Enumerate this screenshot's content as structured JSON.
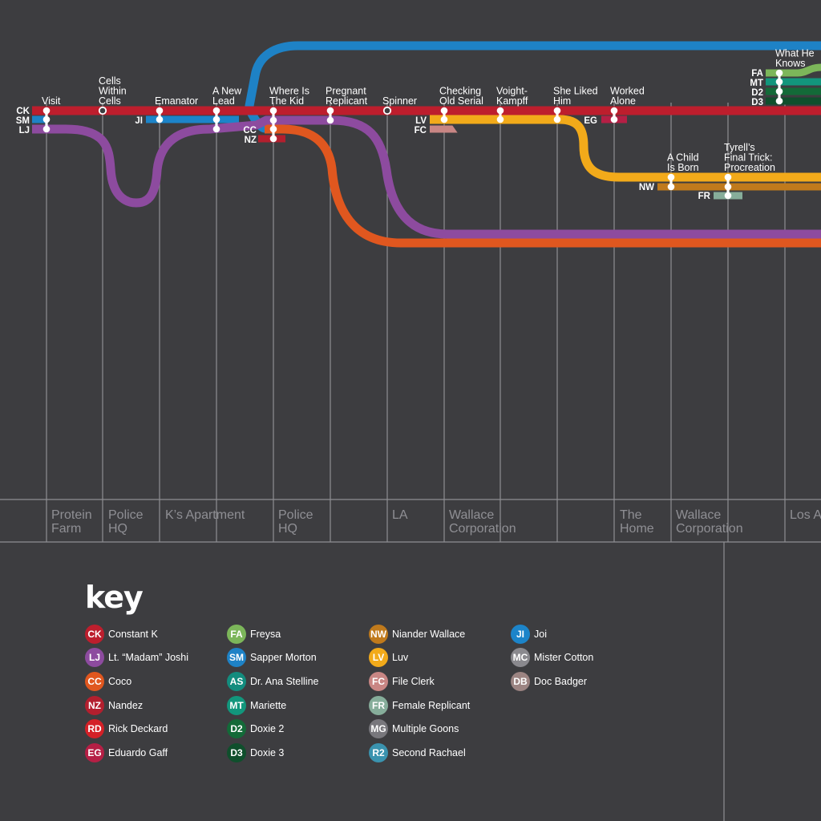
{
  "characters": [
    {
      "code": "CK",
      "name": "Constant K",
      "color": "#bd1e2d"
    },
    {
      "code": "LJ",
      "name": "Lt. “Madam” Joshi",
      "color": "#8d4b9f"
    },
    {
      "code": "CC",
      "name": "Coco",
      "color": "#e0571f"
    },
    {
      "code": "NZ",
      "name": "Nandez",
      "color": "#b31f2e"
    },
    {
      "code": "RD",
      "name": "Rick Deckard",
      "color": "#d42027"
    },
    {
      "code": "EG",
      "name": "Eduardo Gaff",
      "color": "#b51f45"
    },
    {
      "code": "FA",
      "name": "Freysa",
      "color": "#7cb65a"
    },
    {
      "code": "SM",
      "name": "Sapper Morton",
      "color": "#1e82c6"
    },
    {
      "code": "AS",
      "name": "Dr. Ana Stelline",
      "color": "#138c7e"
    },
    {
      "code": "MT",
      "name": "Mariette",
      "color": "#12967c"
    },
    {
      "code": "D2",
      "name": "Doxie 2",
      "color": "#136a38"
    },
    {
      "code": "D3",
      "name": "Doxie 3",
      "color": "#0f4f2c"
    },
    {
      "code": "NW",
      "name": "Niander Wallace",
      "color": "#c07a1c"
    },
    {
      "code": "LV",
      "name": "Luv",
      "color": "#f2aa1a"
    },
    {
      "code": "FC",
      "name": "File Clerk",
      "color": "#c98684"
    },
    {
      "code": "FR",
      "name": "Female Replicant",
      "color": "#86ad9a"
    },
    {
      "code": "MG",
      "name": "Multiple Goons",
      "color": "#78777c"
    },
    {
      "code": "R2",
      "name": "Second Rachael",
      "color": "#3a93af"
    },
    {
      "code": "JI",
      "name": "Joi",
      "color": "#1c84c9"
    },
    {
      "code": "MC",
      "name": "Mister Cotton",
      "color": "#8a898e"
    },
    {
      "code": "DB",
      "name": "Doc Badger",
      "color": "#9c8482"
    }
  ],
  "key": {
    "title": "key",
    "columns": [
      [
        "CK",
        "LJ",
        "CC",
        "NZ",
        "RD",
        "EG"
      ],
      [
        "FA",
        "SM",
        "AS",
        "MT",
        "D2",
        "D3"
      ],
      [
        "NW",
        "LV",
        "FC",
        "FR",
        "MG",
        "R2"
      ],
      [
        "JI",
        "MC",
        "DB"
      ]
    ]
  },
  "locations": [
    "Protein Farm",
    "Police HQ",
    "K’s Apartment",
    "Police HQ",
    "LA",
    "Wallace Corporation",
    "The Home",
    "Wallace Corporation",
    "Los A"
  ],
  "stations": [
    "Visit",
    "Cells Within Cells",
    "Emanator",
    "A New Lead",
    "Where Is The Kid",
    "Pregnant Replicant",
    "Spinner",
    "Checking Old Serial",
    "Voight-Kampff",
    "She Liked Him",
    "Worked Alone",
    "A Child Is Born",
    "Tyrell’s Final Trick: Procreation",
    "What He Knows"
  ],
  "line_tags": [
    "CK",
    "SM",
    "LJ",
    "JI",
    "CC",
    "NZ",
    "LV",
    "FC",
    "EG",
    "NW",
    "FR",
    "FA",
    "MT",
    "D2",
    "D3"
  ]
}
